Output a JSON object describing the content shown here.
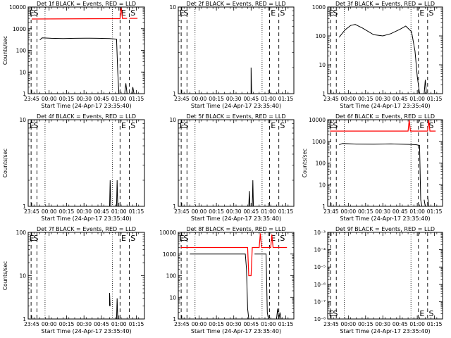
{
  "figure": {
    "background": "#ffffff",
    "events_color": "#000000",
    "lld_color": "#ff0000"
  },
  "x_ticks": [
    {
      "min": 3,
      "label": "23:45"
    },
    {
      "min": 18,
      "label": "00:00"
    },
    {
      "min": 33,
      "label": "00:15"
    },
    {
      "min": 48,
      "label": "00:30"
    },
    {
      "min": 63,
      "label": "00:45"
    },
    {
      "min": 78,
      "label": "01:00"
    },
    {
      "min": 93,
      "label": "01:15"
    }
  ],
  "chart_data": [
    {
      "type": "line",
      "title": "Det 1f BLACK = Events, RED = LLD",
      "xlabel": "Start Time (24-Apr-17 23:35:40)",
      "ylabel": "Counts/sec",
      "ylog": true,
      "xlim": [
        0,
        100
      ],
      "ylim": [
        1,
        10000
      ],
      "y_ticks": [
        {
          "v": 1,
          "label": "1"
        },
        {
          "v": 10,
          "label": "10"
        },
        {
          "v": 100,
          "label": "100"
        },
        {
          "v": 1000,
          "label": "1000"
        },
        {
          "v": 10000,
          "label": "10000"
        }
      ],
      "dashed_lines": [
        2.5,
        7.5,
        79,
        87
      ],
      "dotted_lines": [
        14.5,
        72.5
      ],
      "markers": [
        {
          "x": 1,
          "label": "E"
        },
        {
          "x": 4.5,
          "label": "S"
        },
        {
          "x": 80,
          "label": "E"
        },
        {
          "x": 88,
          "label": "S"
        }
      ],
      "series": [
        {
          "role": "lld",
          "segments": [
            [
              [
                3,
                2800
              ],
              [
                73,
                2900
              ],
              [
                79,
                2900
              ],
              [
                80,
                10000
              ],
              [
                81,
                3000
              ],
              [
                85,
                3000
              ]
            ],
            [
              [
                87,
                3000
              ],
              [
                94,
                3000
              ]
            ]
          ]
        },
        {
          "role": "events",
          "segments": [
            [
              [
                10,
                300
              ],
              [
                12,
                380
              ],
              [
                20,
                360
              ],
              [
                30,
                350
              ],
              [
                40,
                360
              ],
              [
                50,
                365
              ],
              [
                60,
                360
              ],
              [
                70,
                350
              ],
              [
                76,
                330
              ],
              [
                77,
                10
              ],
              [
                78,
                1
              ]
            ],
            [
              [
                83,
                1
              ],
              [
                84,
                3
              ],
              [
                85,
                1
              ]
            ],
            [
              [
                89,
                1
              ],
              [
                90,
                2
              ],
              [
                91,
                1
              ]
            ]
          ]
        }
      ]
    },
    {
      "type": "line",
      "title": "Det 2f BLACK = Events, RED = LLD",
      "xlabel": "Start Time (24-Apr-17 23:35:40)",
      "ylabel": "",
      "ylog": true,
      "xlim": [
        0,
        100
      ],
      "ylim": [
        1,
        10
      ],
      "y_ticks": [
        {
          "v": 1,
          "label": "1"
        },
        {
          "v": 10,
          "label": "10"
        }
      ],
      "dashed_lines": [
        2.5,
        7.5,
        79,
        87
      ],
      "dotted_lines": [
        14.5,
        72.5
      ],
      "markers": [
        {
          "x": 1,
          "label": "E"
        },
        {
          "x": 4.5,
          "label": "S"
        },
        {
          "x": 80,
          "label": "E"
        },
        {
          "x": 88,
          "label": "S"
        }
      ],
      "series": [
        {
          "role": "events",
          "segments": [
            [
              [
                63,
                1
              ],
              [
                63,
                2
              ],
              [
                63.5,
                1
              ]
            ]
          ]
        }
      ]
    },
    {
      "type": "line",
      "title": "Det 3f BLACK = Events, RED = LLD",
      "xlabel": "Start Time (24-Apr-17 23:35:40)",
      "ylabel": "",
      "ylog": true,
      "xlim": [
        0,
        100
      ],
      "ylim": [
        1,
        1000
      ],
      "y_ticks": [
        {
          "v": 1,
          "label": "1"
        },
        {
          "v": 10,
          "label": "10"
        },
        {
          "v": 100,
          "label": "100"
        },
        {
          "v": 1000,
          "label": "1000"
        }
      ],
      "dashed_lines": [
        2.5,
        7.5,
        79,
        87
      ],
      "dotted_lines": [
        14.5,
        72.5
      ],
      "markers": [
        {
          "x": 1,
          "label": "E"
        },
        {
          "x": 4.5,
          "label": "S"
        },
        {
          "x": 80,
          "label": "E"
        },
        {
          "x": 88,
          "label": "S"
        }
      ],
      "series": [
        {
          "role": "events",
          "segments": [
            [
              [
                10,
                90
              ],
              [
                15,
                160
              ],
              [
                20,
                230
              ],
              [
                24,
                250
              ],
              [
                30,
                190
              ],
              [
                40,
                110
              ],
              [
                48,
                100
              ],
              [
                55,
                120
              ],
              [
                63,
                170
              ],
              [
                68,
                220
              ],
              [
                73,
                140
              ],
              [
                76,
                30
              ],
              [
                78,
                4
              ],
              [
                80,
                1
              ]
            ],
            [
              [
                84,
                1
              ],
              [
                85,
                3
              ],
              [
                86,
                1
              ]
            ]
          ]
        }
      ]
    },
    {
      "type": "line",
      "title": "Det 4f BLACK = Events, RED = LLD",
      "xlabel": "Start Time (24-Apr-17 23:35:40)",
      "ylabel": "Counts/sec",
      "ylog": true,
      "xlim": [
        0,
        100
      ],
      "ylim": [
        1,
        10
      ],
      "y_ticks": [
        {
          "v": 1,
          "label": "1"
        },
        {
          "v": 10,
          "label": "10"
        }
      ],
      "dashed_lines": [
        2.5,
        7.5,
        79,
        87
      ],
      "dotted_lines": [
        14.5,
        72.5
      ],
      "markers": [
        {
          "x": 1,
          "label": "E"
        },
        {
          "x": 4.5,
          "label": "S"
        },
        {
          "x": 80,
          "label": "E"
        },
        {
          "x": 88,
          "label": "S"
        }
      ],
      "series": [
        {
          "role": "events",
          "segments": [
            [
              [
                70,
                1
              ],
              [
                70.5,
                2
              ],
              [
                71,
                1
              ]
            ],
            [
              [
                76,
                1
              ],
              [
                76.5,
                2
              ],
              [
                77,
                1
              ]
            ]
          ]
        }
      ]
    },
    {
      "type": "line",
      "title": "Det 5f BLACK = Events, RED = LLD",
      "xlabel": "Start Time (24-Apr-17 23:35:40)",
      "ylabel": "",
      "ylog": true,
      "xlim": [
        0,
        100
      ],
      "ylim": [
        1,
        10
      ],
      "y_ticks": [
        {
          "v": 1,
          "label": "1"
        },
        {
          "v": 10,
          "label": "10"
        }
      ],
      "dashed_lines": [
        2.5,
        7.5,
        79,
        87
      ],
      "dotted_lines": [
        14.5,
        72.5
      ],
      "markers": [
        {
          "x": 1,
          "label": "E"
        },
        {
          "x": 4.5,
          "label": "S"
        },
        {
          "x": 80,
          "label": "E"
        },
        {
          "x": 88,
          "label": "S"
        }
      ],
      "series": [
        {
          "role": "events",
          "segments": [
            [
              [
                61,
                1
              ],
              [
                61.5,
                1.5
              ],
              [
                62,
                1
              ]
            ],
            [
              [
                64,
                1
              ],
              [
                64.5,
                2
              ],
              [
                65,
                1
              ]
            ]
          ]
        }
      ]
    },
    {
      "type": "line",
      "title": "Det 6f BLACK = Events, RED = LLD",
      "xlabel": "Start Time (24-Apr-17 23:35:40)",
      "ylabel": "Counts/sec",
      "ylog": true,
      "xlim": [
        0,
        100
      ],
      "ylim": [
        1,
        10000
      ],
      "y_ticks": [
        {
          "v": 1,
          "label": "1"
        },
        {
          "v": 10,
          "label": "10"
        },
        {
          "v": 100,
          "label": "100"
        },
        {
          "v": 1000,
          "label": "1000"
        },
        {
          "v": 10000,
          "label": "10000"
        }
      ],
      "dashed_lines": [
        2.5,
        7.5,
        79,
        87
      ],
      "dotted_lines": [
        14.5,
        72.5
      ],
      "markers": [
        {
          "x": 1,
          "label": "E"
        },
        {
          "x": 4.5,
          "label": "S"
        },
        {
          "x": 80,
          "label": "E"
        },
        {
          "x": 88,
          "label": "S"
        }
      ],
      "series": [
        {
          "role": "lld",
          "segments": [
            [
              [
                2,
                3000
              ],
              [
                70,
                3000
              ],
              [
                71,
                10000
              ],
              [
                72,
                3000
              ],
              [
                87,
                3000
              ],
              [
                88,
                10000
              ],
              [
                89,
                3000
              ],
              [
                94,
                3000
              ]
            ]
          ]
        },
        {
          "role": "events",
          "segments": [
            [
              [
                10,
                700
              ],
              [
                13,
                800
              ],
              [
                25,
                750
              ],
              [
                40,
                740
              ],
              [
                55,
                760
              ],
              [
                70,
                730
              ],
              [
                77,
                700
              ],
              [
                80,
                650
              ],
              [
                81,
                2
              ],
              [
                82,
                1
              ]
            ],
            [
              [
                84,
                2
              ],
              [
                85,
                1
              ]
            ],
            [
              [
                87,
                3
              ],
              [
                88,
                1
              ]
            ]
          ]
        }
      ]
    },
    {
      "type": "line",
      "title": "Det 7f BLACK = Events, RED = LLD",
      "xlabel": "Start Time (24-Apr-17 23:35:40)",
      "ylabel": "Counts/sec",
      "ylog": true,
      "xlim": [
        0,
        100
      ],
      "ylim": [
        1,
        100
      ],
      "y_ticks": [
        {
          "v": 1,
          "label": "1"
        },
        {
          "v": 10,
          "label": "10"
        },
        {
          "v": 100,
          "label": "100"
        }
      ],
      "dashed_lines": [
        2.5,
        7.5,
        79,
        87
      ],
      "dotted_lines": [
        14.5,
        72.5
      ],
      "markers": [
        {
          "x": 1,
          "label": "E"
        },
        {
          "x": 4.5,
          "label": "S"
        },
        {
          "x": 80,
          "label": "E"
        },
        {
          "x": 88,
          "label": "S"
        }
      ],
      "series": [
        {
          "role": "events",
          "segments": [
            [
              [
                70,
                2
              ],
              [
                70,
                4
              ],
              [
                70.5,
                2
              ]
            ],
            [
              [
                76,
                1
              ],
              [
                76.5,
                3
              ],
              [
                77,
                1
              ]
            ]
          ]
        }
      ]
    },
    {
      "type": "line",
      "title": "Det 8f BLACK = Events, RED = LLD",
      "xlabel": "Start Time (24-Apr-17 23:35:40)",
      "ylabel": "",
      "ylog": true,
      "xlim": [
        0,
        100
      ],
      "ylim": [
        1,
        10000
      ],
      "y_ticks": [
        {
          "v": 1,
          "label": "1"
        },
        {
          "v": 10,
          "label": "10"
        },
        {
          "v": 100,
          "label": "100"
        },
        {
          "v": 1000,
          "label": "1000"
        },
        {
          "v": 10000,
          "label": "10000"
        }
      ],
      "dashed_lines": [
        2.5,
        7.5,
        79,
        87
      ],
      "dotted_lines": [
        14.5,
        72.5
      ],
      "markers": [
        {
          "x": 1,
          "label": "E"
        },
        {
          "x": 4.5,
          "label": "S"
        },
        {
          "x": 80,
          "label": "E"
        },
        {
          "x": 88,
          "label": "S"
        }
      ],
      "series": [
        {
          "role": "lld",
          "segments": [
            [
              [
                2,
                2000
              ],
              [
                60,
                2000
              ],
              [
                61,
                100
              ],
              [
                63,
                100
              ],
              [
                64,
                2000
              ],
              [
                70,
                2000
              ],
              [
                71,
                9000
              ],
              [
                72,
                2000
              ],
              [
                80,
                2000
              ],
              [
                81,
                8000
              ],
              [
                82,
                2000
              ],
              [
                94,
                2000
              ]
            ]
          ]
        },
        {
          "role": "events",
          "segments": [
            [
              [
                10,
                1000
              ],
              [
                58,
                1000
              ],
              [
                59,
                200
              ],
              [
                60,
                3
              ],
              [
                61,
                1
              ]
            ],
            [
              [
                66,
                1000
              ],
              [
                76,
                1000
              ],
              [
                77,
                2
              ],
              [
                78,
                1
              ]
            ],
            [
              [
                85,
                1
              ],
              [
                86,
                3
              ],
              [
                87,
                1
              ],
              [
                88,
                2
              ],
              [
                89,
                1
              ]
            ]
          ]
        }
      ]
    },
    {
      "type": "line",
      "title": "Det 9f BLACK = Events, RED = LLD",
      "xlabel": "Start Time (24-Apr-17 23:35:40)",
      "ylabel": "",
      "ylog": true,
      "xlim": [
        0,
        100
      ],
      "ylim": [
        1e-08,
        0.001
      ],
      "y_ticks": [
        {
          "v": 1e-08,
          "label": "10⁻⁸"
        },
        {
          "v": 1e-07,
          "label": "10⁻⁷"
        },
        {
          "v": 1e-06,
          "label": "10⁻⁶"
        },
        {
          "v": 1e-05,
          "label": "10⁻⁵"
        },
        {
          "v": 0.0001,
          "label": "10⁻⁴"
        },
        {
          "v": 0.001,
          "label": "10⁻³"
        }
      ],
      "dashed_lines": [
        2.5,
        7.5,
        79,
        87
      ],
      "dotted_lines": [
        14.5,
        72.5
      ],
      "markers": [
        {
          "x": 1,
          "label": "E"
        },
        {
          "x": 4.5,
          "label": "S"
        },
        {
          "x": 80,
          "label": "E"
        },
        {
          "x": 88,
          "label": "S"
        }
      ],
      "marker_position": "bottom",
      "series": []
    }
  ]
}
